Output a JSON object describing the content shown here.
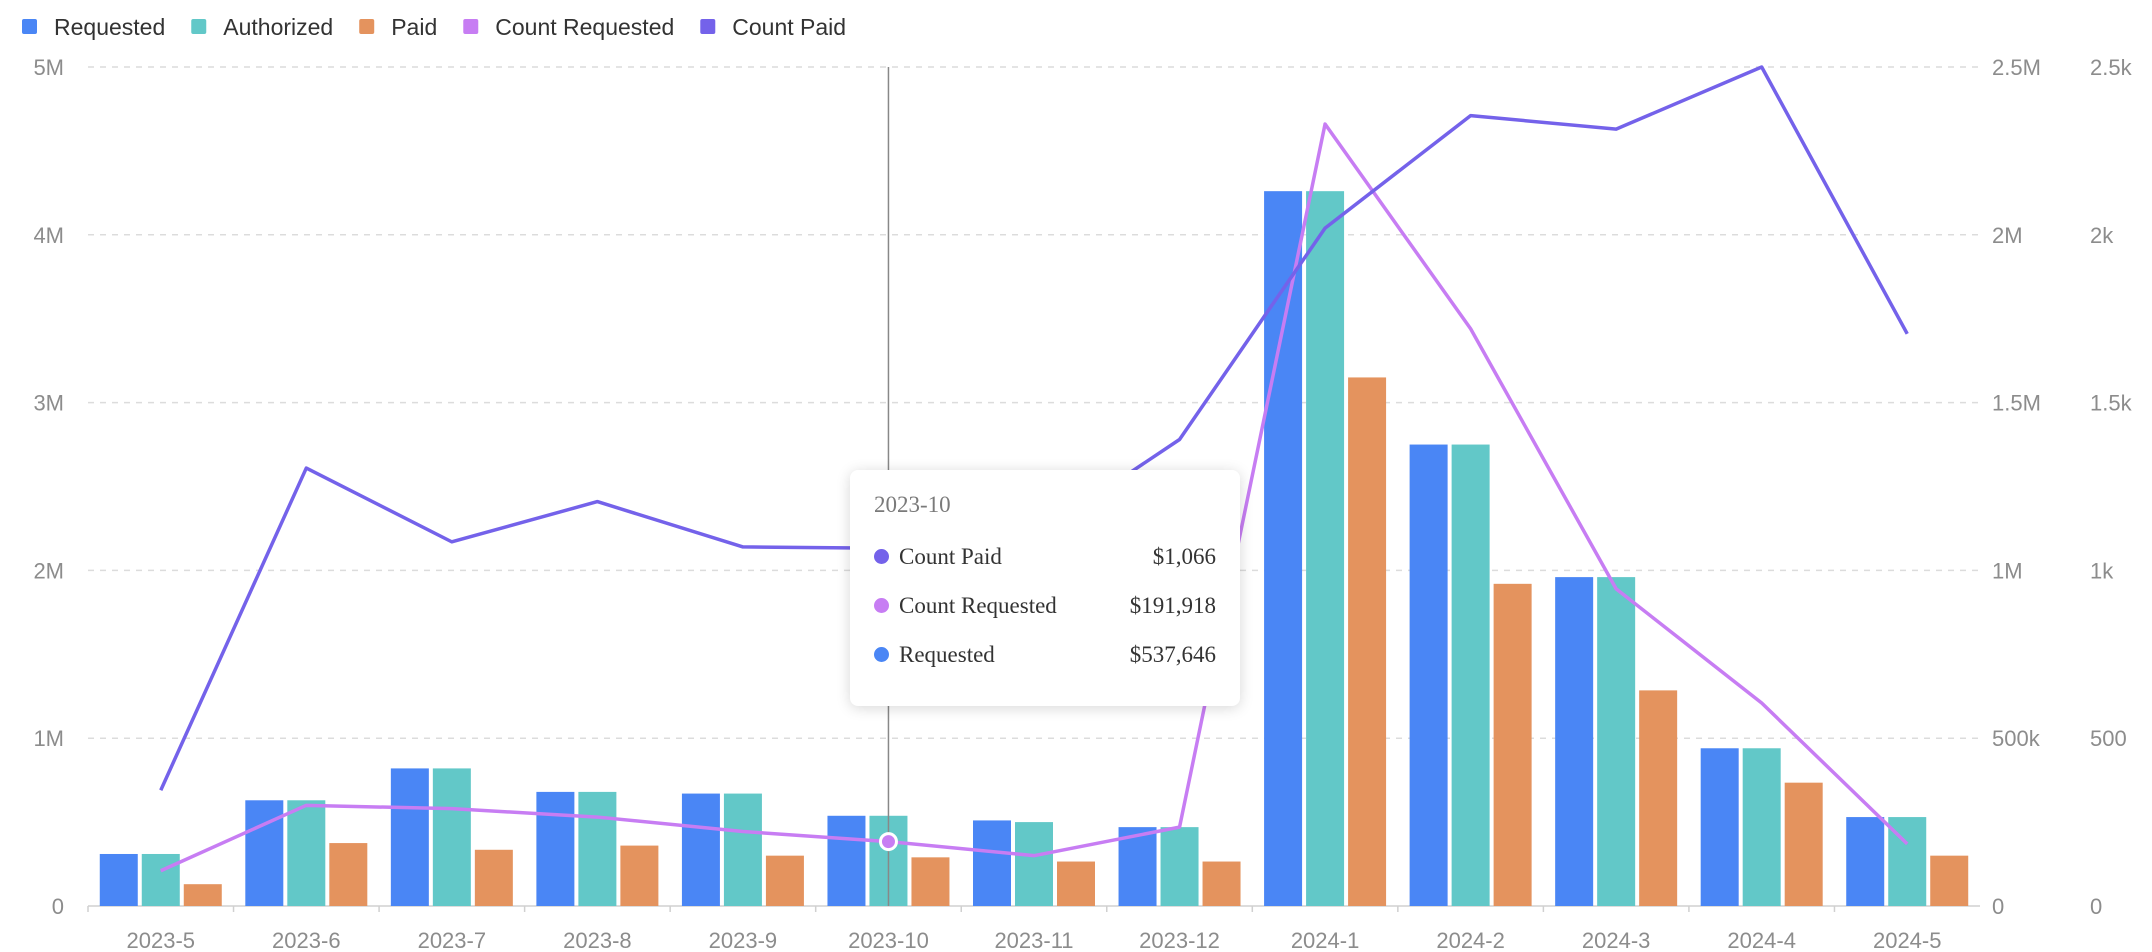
{
  "chart_data": {
    "type": "bar",
    "title": "",
    "categories": [
      "2023-5",
      "2023-6",
      "2023-7",
      "2023-8",
      "2023-9",
      "2023-10",
      "2023-11",
      "2023-12",
      "2024-1",
      "2024-2",
      "2024-3",
      "2024-4",
      "2024-5"
    ],
    "left_axis": {
      "min": 0,
      "max": 5000000,
      "ticks": [
        "0",
        "1M",
        "2M",
        "3M",
        "4M",
        "5M"
      ]
    },
    "right_axis_1": {
      "min": 0,
      "max": 2500000,
      "ticks": [
        "0",
        "500k",
        "1M",
        "1.5M",
        "2M",
        "2.5M"
      ]
    },
    "right_axis_2": {
      "min": 0,
      "max": 2500,
      "ticks": [
        "0",
        "500",
        "1k",
        "1.5k",
        "2k",
        "2.5k"
      ]
    },
    "grid": true,
    "legend_position": "top-left",
    "series": [
      {
        "name": "Requested",
        "type": "bar",
        "color": "#4a86f5",
        "axis": "left",
        "values": [
          310000,
          630000,
          820000,
          680000,
          670000,
          537646,
          510000,
          470000,
          4260000,
          2750000,
          1960000,
          940000,
          530000
        ]
      },
      {
        "name": "Authorized",
        "type": "bar",
        "color": "#62c8c8",
        "axis": "left",
        "values": [
          310000,
          630000,
          820000,
          680000,
          670000,
          537646,
          500000,
          470000,
          4260000,
          2750000,
          1960000,
          940000,
          530000
        ]
      },
      {
        "name": "Paid",
        "type": "bar",
        "color": "#e4935e",
        "axis": "left",
        "values": [
          130000,
          375000,
          335000,
          360000,
          300000,
          290000,
          265000,
          265000,
          3150000,
          1920000,
          1285000,
          735000,
          300000
        ]
      },
      {
        "name": "Count Requested",
        "type": "line",
        "color": "#c77df3",
        "axis": "right_1",
        "values": [
          105000,
          300000,
          290000,
          265000,
          222000,
          191918,
          150000,
          235000,
          2330000,
          1720000,
          945000,
          605000,
          185000
        ]
      },
      {
        "name": "Count Paid",
        "type": "line",
        "color": "#7462ea",
        "axis": "right_2",
        "values": [
          345,
          1305,
          1085,
          1205,
          1070,
          1066,
          1100,
          1390,
          2020,
          2355,
          2315,
          2500,
          1705
        ]
      }
    ],
    "hover_index": 5,
    "tooltip": {
      "title": "2023-10",
      "rows": [
        {
          "name": "Count Paid",
          "value": "$1,066",
          "color": "#7462ea"
        },
        {
          "name": "Count Requested",
          "value": "$191,918",
          "color": "#c77df3"
        },
        {
          "name": "Requested",
          "value": "$537,646",
          "color": "#4a86f5"
        }
      ]
    }
  }
}
